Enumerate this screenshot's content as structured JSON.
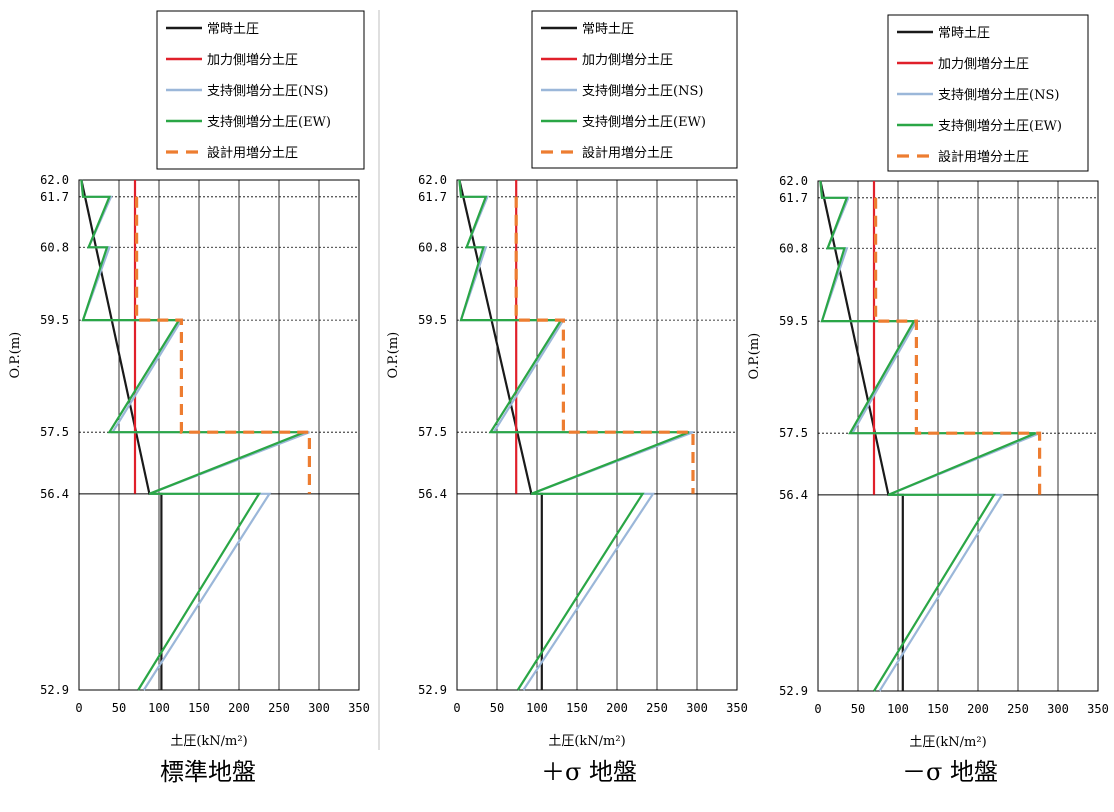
{
  "chart_data": [
    {
      "type": "line",
      "title": "標準地盤",
      "xlabel": "土圧(kN/m²)",
      "ylabel": "O.P.(m)",
      "xlim": [
        0,
        350
      ],
      "xticks": [
        0,
        50,
        100,
        150,
        200,
        250,
        300,
        350
      ],
      "ylim": [
        52.9,
        62.0
      ],
      "yticks": [
        62.0,
        61.7,
        60.8,
        59.5,
        57.5,
        56.4,
        52.9
      ],
      "ytick_labels": [
        "62.0",
        "61.7",
        "60.8",
        "59.5",
        "57.5",
        "56.4",
        "52.9"
      ],
      "legend": [
        "常時土圧",
        "加力側増分土圧",
        "支持側増分土圧(NS)",
        "支持側増分土圧(EW)",
        "設計用増分土圧"
      ],
      "series": [
        {
          "name": "常時土圧",
          "color": "#1a1a1a",
          "dash": "solid",
          "points": [
            [
              3,
              62.0
            ],
            [
              88,
              56.4
            ],
            [
              103,
              56.4
            ],
            [
              103,
              52.9
            ]
          ]
        },
        {
          "name": "加力側増分土圧",
          "color": "#e0202a",
          "dash": "solid",
          "points": [
            [
              70,
              62.0
            ],
            [
              70,
              56.4
            ]
          ]
        },
        {
          "name": "支持側増分土圧(NS)",
          "color": "#9bb7d9",
          "dash": "solid",
          "points": [
            [
              3,
              62.0
            ],
            [
              5,
              61.7
            ],
            [
              40,
              61.7
            ],
            [
              12,
              60.8
            ],
            [
              38,
              60.8
            ],
            [
              5,
              59.5
            ],
            [
              128,
              59.5
            ],
            [
              42,
              57.5
            ],
            [
              288,
              57.5
            ],
            [
              88,
              56.4
            ],
            [
              238,
              56.4
            ],
            [
              81,
              52.9
            ]
          ]
        },
        {
          "name": "支持側増分土圧(EW)",
          "color": "#2aa646",
          "dash": "solid",
          "points": [
            [
              3,
              62.0
            ],
            [
              5,
              61.7
            ],
            [
              38,
              61.7
            ],
            [
              12,
              60.8
            ],
            [
              35,
              60.8
            ],
            [
              5,
              59.5
            ],
            [
              125,
              59.5
            ],
            [
              38,
              57.5
            ],
            [
              282,
              57.5
            ],
            [
              88,
              56.4
            ],
            [
              225,
              56.4
            ],
            [
              74,
              52.9
            ]
          ]
        },
        {
          "name": "設計用増分土圧",
          "color": "#ed7d31",
          "dash": "dashed",
          "points": [
            [
              72,
              61.7
            ],
            [
              72,
              59.5
            ],
            [
              128,
              59.5
            ],
            [
              128,
              57.5
            ],
            [
              288,
              57.5
            ],
            [
              288,
              56.4
            ]
          ]
        }
      ],
      "grid": true
    },
    {
      "type": "line",
      "title": "＋σ 地盤",
      "xlabel": "土圧(kN/m²)",
      "ylabel": "O.P.(m)",
      "xlim": [
        0,
        350
      ],
      "xticks": [
        0,
        50,
        100,
        150,
        200,
        250,
        300,
        350
      ],
      "ylim": [
        52.9,
        62.0
      ],
      "yticks": [
        62.0,
        61.7,
        60.8,
        59.5,
        57.5,
        56.4,
        52.9
      ],
      "ytick_labels": [
        "62.0",
        "61.7",
        "60.8",
        "59.5",
        "57.5",
        "56.4",
        "52.9"
      ],
      "legend": [
        "常時土圧",
        "加力側増分土圧",
        "支持側増分土圧(NS)",
        "支持側増分土圧(EW)",
        "設計用増分土圧"
      ],
      "series": [
        {
          "name": "常時土圧",
          "color": "#1a1a1a",
          "dash": "solid",
          "points": [
            [
              3,
              62.0
            ],
            [
              93,
              56.4
            ],
            [
              106,
              56.4
            ],
            [
              106,
              52.9
            ]
          ]
        },
        {
          "name": "加力側増分土圧",
          "color": "#e0202a",
          "dash": "solid",
          "points": [
            [
              74,
              62.0
            ],
            [
              74,
              56.4
            ]
          ]
        },
        {
          "name": "支持側増分土圧(NS)",
          "color": "#9bb7d9",
          "dash": "solid",
          "points": [
            [
              3,
              62.0
            ],
            [
              5,
              61.7
            ],
            [
              38,
              61.7
            ],
            [
              12,
              60.8
            ],
            [
              36,
              60.8
            ],
            [
              5,
              59.5
            ],
            [
              133,
              59.5
            ],
            [
              46,
              57.5
            ],
            [
              295,
              57.5
            ],
            [
              93,
              56.4
            ],
            [
              245,
              56.4
            ],
            [
              83,
              52.9
            ]
          ]
        },
        {
          "name": "支持側増分土圧(EW)",
          "color": "#2aa646",
          "dash": "solid",
          "points": [
            [
              3,
              62.0
            ],
            [
              5,
              61.7
            ],
            [
              36,
              61.7
            ],
            [
              12,
              60.8
            ],
            [
              33,
              60.8
            ],
            [
              5,
              59.5
            ],
            [
              130,
              59.5
            ],
            [
              42,
              57.5
            ],
            [
              290,
              57.5
            ],
            [
              93,
              56.4
            ],
            [
              232,
              56.4
            ],
            [
              76,
              52.9
            ]
          ]
        },
        {
          "name": "設計用増分土圧",
          "color": "#ed7d31",
          "dash": "dashed",
          "points": [
            [
              74,
              61.7
            ],
            [
              74,
              59.5
            ],
            [
              133,
              59.5
            ],
            [
              133,
              57.5
            ],
            [
              295,
              57.5
            ],
            [
              295,
              56.4
            ]
          ]
        }
      ],
      "grid": true
    },
    {
      "type": "line",
      "title": "－σ 地盤",
      "xlabel": "土圧(kN/m²)",
      "ylabel": "O.P.(m)",
      "xlim": [
        0,
        350
      ],
      "xticks": [
        0,
        50,
        100,
        150,
        200,
        250,
        300,
        350
      ],
      "ylim": [
        52.9,
        62.0
      ],
      "yticks": [
        62.0,
        61.7,
        60.8,
        59.5,
        57.5,
        56.4,
        52.9
      ],
      "ytick_labels": [
        "62.0",
        "61.7",
        "60.8",
        "59.5",
        "57.5",
        "56.4",
        "52.9"
      ],
      "legend": [
        "常時土圧",
        "加力側増分土圧",
        "支持側増分土圧(NS)",
        "支持側増分土圧(EW)",
        "設計用増分土圧"
      ],
      "series": [
        {
          "name": "常時土圧",
          "color": "#1a1a1a",
          "dash": "solid",
          "points": [
            [
              3,
              62.0
            ],
            [
              88,
              56.4
            ],
            [
              106,
              56.4
            ],
            [
              106,
              52.9
            ]
          ]
        },
        {
          "name": "加力側増分土圧",
          "color": "#e0202a",
          "dash": "solid",
          "points": [
            [
              70,
              62.0
            ],
            [
              70,
              56.4
            ]
          ]
        },
        {
          "name": "支持側増分土圧(NS)",
          "color": "#9bb7d9",
          "dash": "solid",
          "points": [
            [
              3,
              62.0
            ],
            [
              5,
              61.7
            ],
            [
              38,
              61.7
            ],
            [
              12,
              60.8
            ],
            [
              36,
              60.8
            ],
            [
              5,
              59.5
            ],
            [
              123,
              59.5
            ],
            [
              43,
              57.5
            ],
            [
              277,
              57.5
            ],
            [
              88,
              56.4
            ],
            [
              230,
              56.4
            ],
            [
              77,
              52.9
            ]
          ]
        },
        {
          "name": "支持側増分土圧(EW)",
          "color": "#2aa646",
          "dash": "solid",
          "points": [
            [
              3,
              62.0
            ],
            [
              5,
              61.7
            ],
            [
              36,
              61.7
            ],
            [
              12,
              60.8
            ],
            [
              33,
              60.8
            ],
            [
              5,
              59.5
            ],
            [
              120,
              59.5
            ],
            [
              40,
              57.5
            ],
            [
              272,
              57.5
            ],
            [
              88,
              56.4
            ],
            [
              220,
              56.4
            ],
            [
              70,
              52.9
            ]
          ]
        },
        {
          "name": "設計用増分土圧",
          "color": "#ed7d31",
          "dash": "dashed",
          "points": [
            [
              72,
              61.7
            ],
            [
              72,
              59.5
            ],
            [
              123,
              59.5
            ],
            [
              123,
              57.5
            ],
            [
              277,
              57.5
            ],
            [
              277,
              56.4
            ]
          ]
        }
      ],
      "grid": true
    }
  ]
}
